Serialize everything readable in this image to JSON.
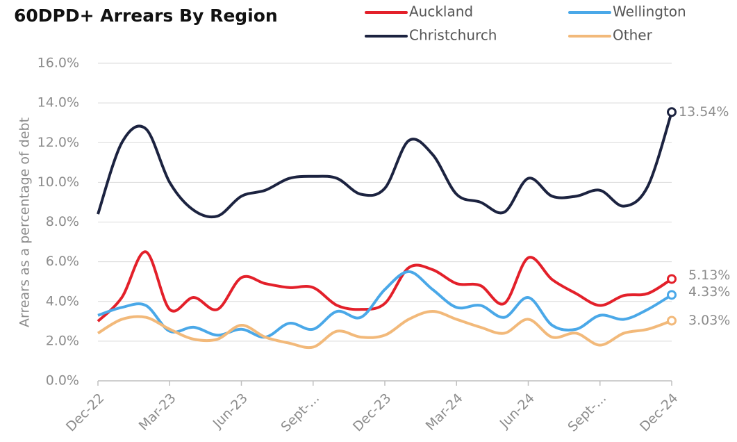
{
  "chart_data": {
    "type": "line",
    "title": "60DPD+ Arrears By Region",
    "ylabel": "Arrears as a percentage of debt",
    "categories": [
      "Dec-22",
      null,
      null,
      "Mar-23",
      null,
      null,
      "Jun-23",
      null,
      null,
      "Sept-...",
      null,
      null,
      "Dec-23",
      null,
      null,
      "Mar-24",
      null,
      null,
      "Jun-24",
      null,
      null,
      "Sept-...",
      null,
      null,
      "Dec-24"
    ],
    "ylim": [
      0,
      16
    ],
    "yticks": [
      {
        "value": 0,
        "label": "0.0%"
      },
      {
        "value": 2,
        "label": "2.0%"
      },
      {
        "value": 4,
        "label": "4.0%"
      },
      {
        "value": 6,
        "label": "6.0%"
      },
      {
        "value": 8,
        "label": "8.0%"
      },
      {
        "value": 10,
        "label": "10.0%"
      },
      {
        "value": 12,
        "label": "12.0%"
      },
      {
        "value": 14,
        "label": "14.0%"
      },
      {
        "value": 16,
        "label": "16.0%"
      }
    ],
    "grid": true,
    "series": [
      {
        "name": "Auckland",
        "color": "#e3202a",
        "values": [
          3.0,
          4.2,
          6.5,
          3.6,
          4.2,
          3.6,
          5.2,
          4.9,
          4.7,
          4.7,
          3.8,
          3.6,
          3.9,
          5.7,
          5.6,
          4.9,
          4.8,
          3.9,
          6.2,
          5.1,
          4.4,
          3.8,
          4.3,
          4.4,
          5.13
        ],
        "value_labels": [
          null,
          null,
          null,
          null,
          null,
          null,
          null,
          null,
          null,
          null,
          null,
          null,
          null,
          null,
          null,
          null,
          null,
          null,
          null,
          null,
          null,
          null,
          null,
          null,
          "5.13%"
        ]
      },
      {
        "name": "Wellington",
        "color": "#4aa8e8",
        "values": [
          3.3,
          3.7,
          3.8,
          2.5,
          2.7,
          2.3,
          2.6,
          2.2,
          2.9,
          2.6,
          3.5,
          3.2,
          4.6,
          5.5,
          4.6,
          3.7,
          3.8,
          3.2,
          4.2,
          2.8,
          2.6,
          3.3,
          3.1,
          3.6,
          4.33
        ],
        "value_labels": [
          null,
          null,
          null,
          null,
          null,
          null,
          null,
          null,
          null,
          null,
          null,
          null,
          null,
          null,
          null,
          null,
          null,
          null,
          null,
          null,
          null,
          null,
          null,
          null,
          "4.33%"
        ]
      },
      {
        "name": "Christchurch",
        "color": "#1c2340",
        "values": [
          8.4,
          12.0,
          12.7,
          10.0,
          8.6,
          8.3,
          9.3,
          9.6,
          10.2,
          10.3,
          10.2,
          9.4,
          9.7,
          12.1,
          11.4,
          9.4,
          9.0,
          8.5,
          10.2,
          9.3,
          9.3,
          9.6,
          8.8,
          9.8,
          13.54
        ],
        "value_labels": [
          null,
          null,
          null,
          null,
          null,
          null,
          null,
          null,
          null,
          null,
          null,
          null,
          null,
          null,
          null,
          null,
          null,
          null,
          null,
          null,
          null,
          null,
          null,
          null,
          "13.54%"
        ]
      },
      {
        "name": "Other",
        "color": "#f2b97a",
        "values": [
          2.4,
          3.1,
          3.2,
          2.6,
          2.1,
          2.1,
          2.8,
          2.2,
          1.9,
          1.7,
          2.5,
          2.2,
          2.3,
          3.1,
          3.5,
          3.1,
          2.7,
          2.4,
          3.1,
          2.2,
          2.4,
          1.8,
          2.4,
          2.6,
          3.03
        ],
        "value_labels": [
          null,
          null,
          null,
          null,
          null,
          null,
          null,
          null,
          null,
          null,
          null,
          null,
          null,
          null,
          null,
          null,
          null,
          null,
          null,
          null,
          null,
          null,
          null,
          null,
          "3.03%"
        ]
      }
    ]
  }
}
